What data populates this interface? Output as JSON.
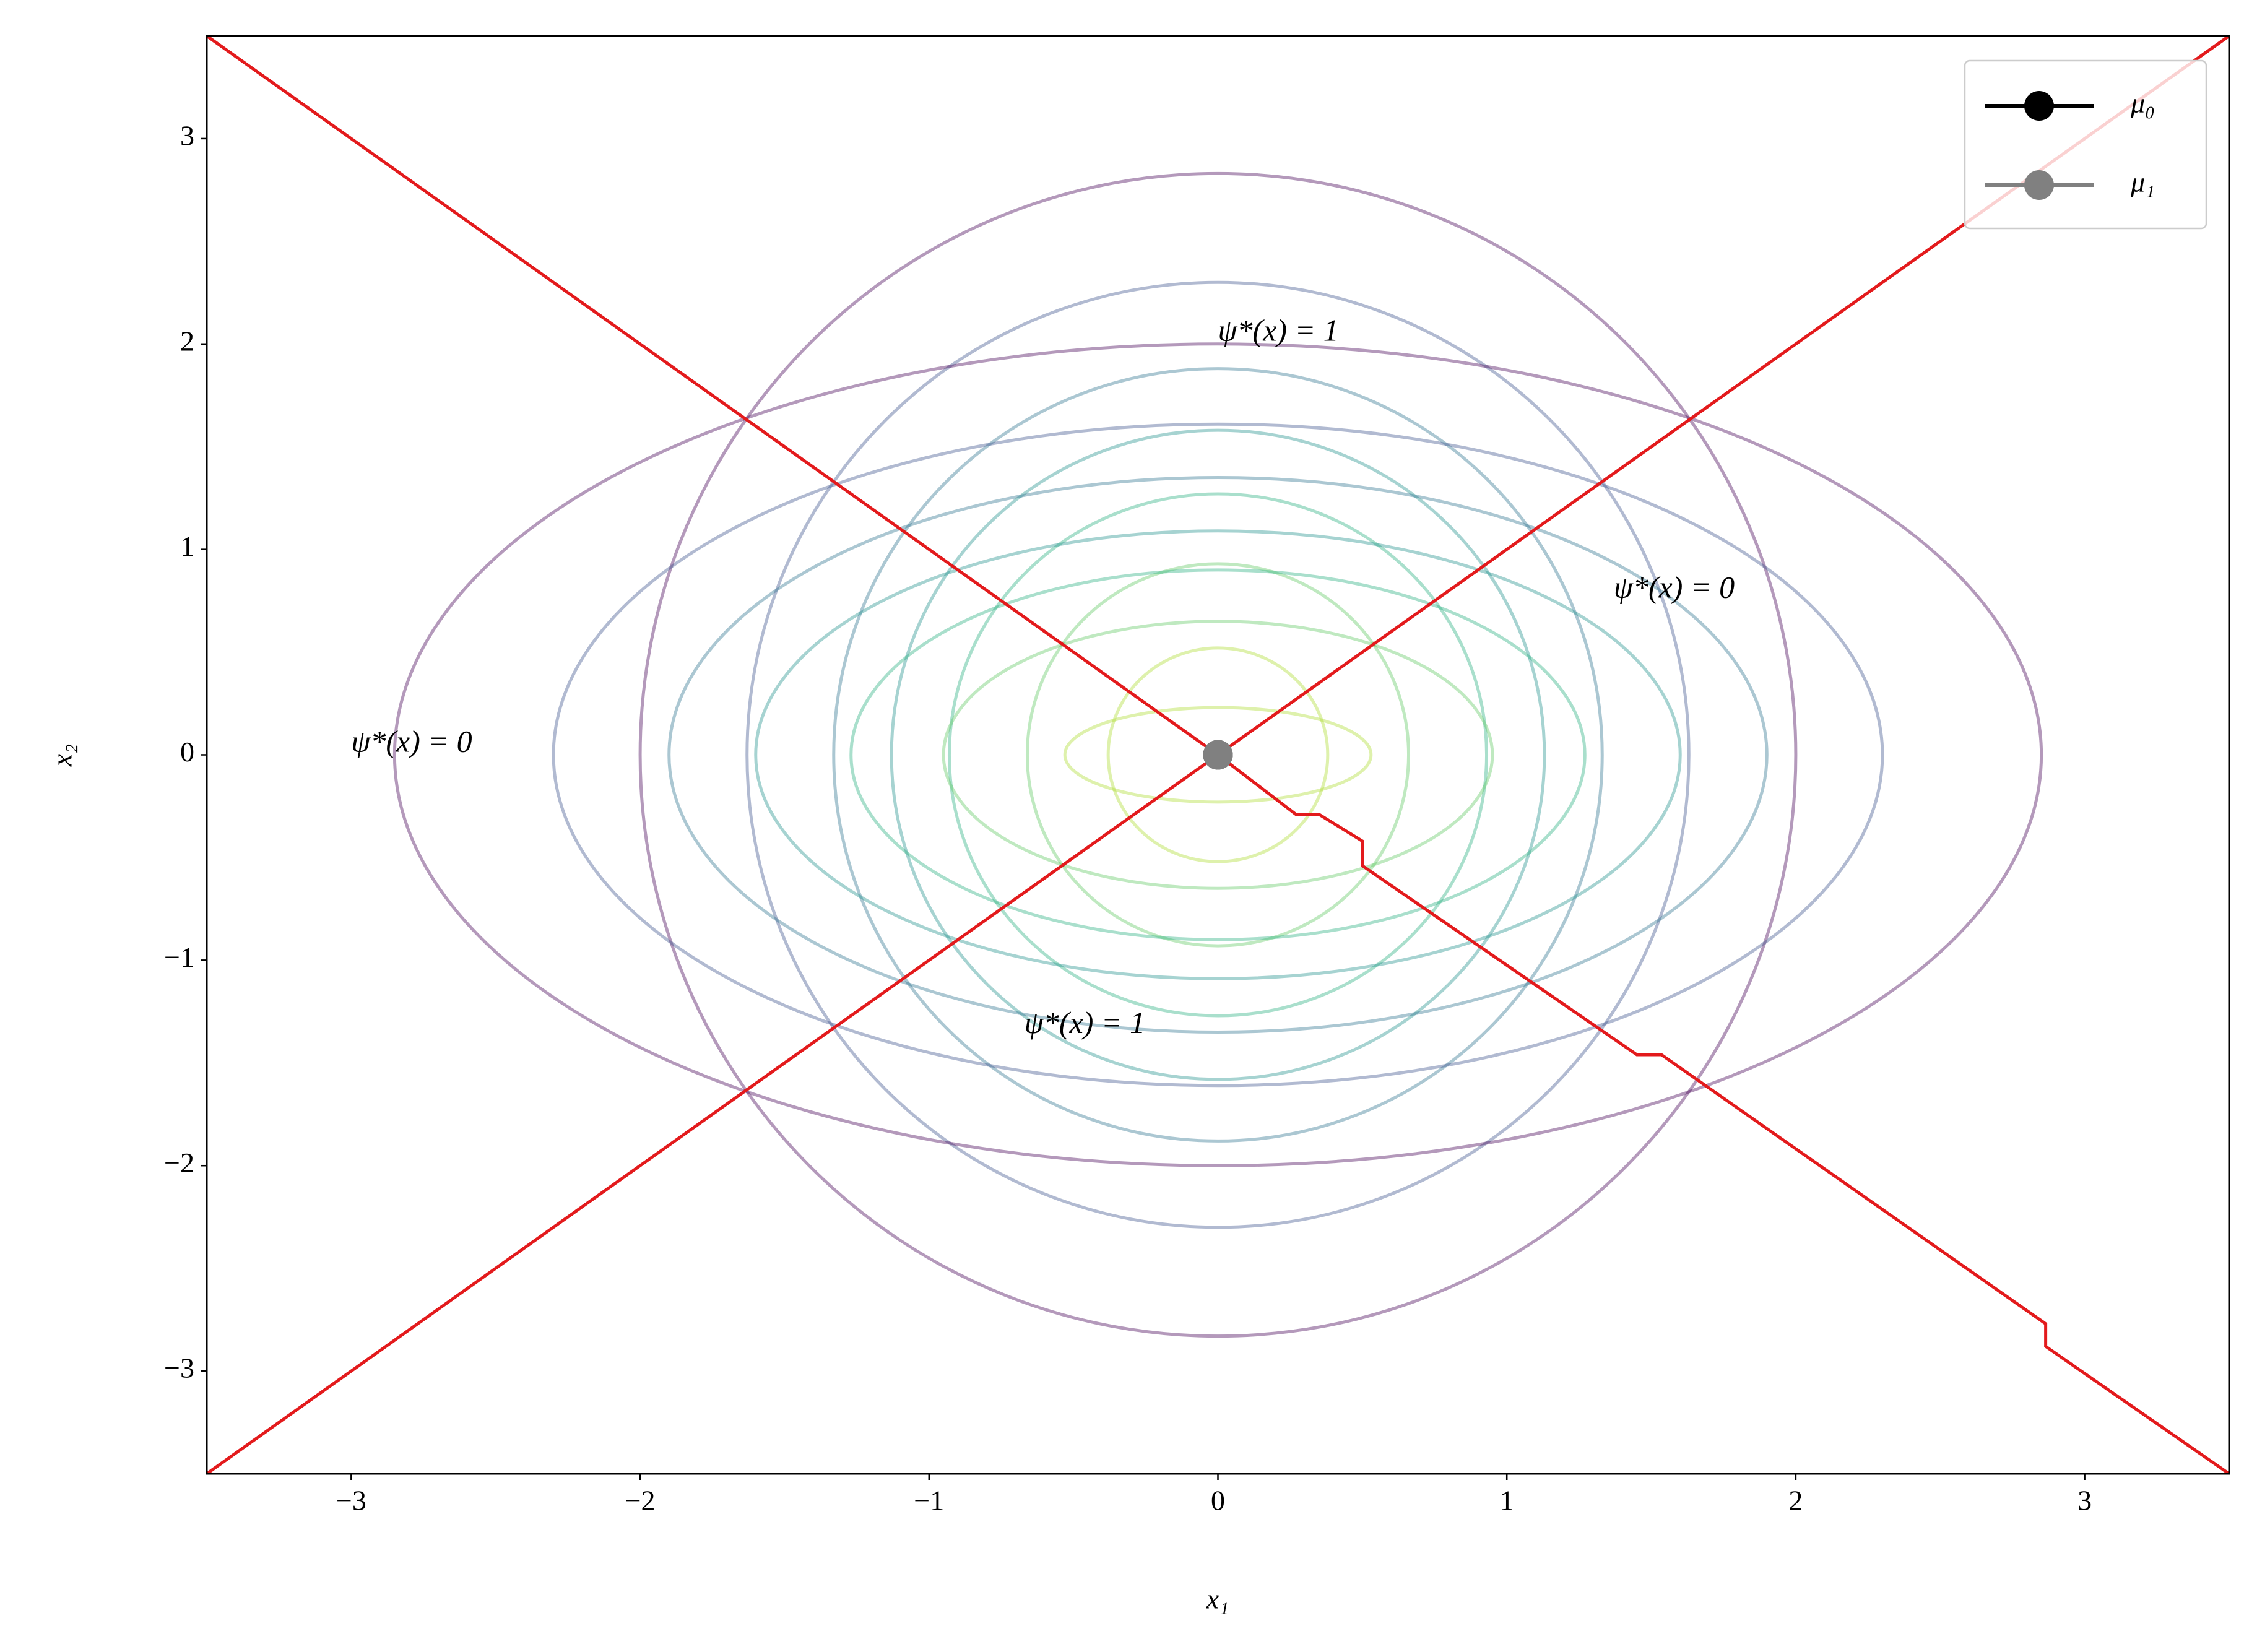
{
  "chart_data": {
    "type": "contour",
    "xlabel": "x₁",
    "ylabel": "x₂",
    "xlim": [
      -3.5,
      3.5
    ],
    "ylim": [
      -3.5,
      3.5
    ],
    "xticks": [
      {
        "value": -3,
        "label": "−3"
      },
      {
        "value": -2,
        "label": "−2"
      },
      {
        "value": -1,
        "label": "−1"
      },
      0,
      1,
      2,
      3
    ],
    "yticks": [
      {
        "value": -3,
        "label": "−3"
      },
      {
        "value": -2,
        "label": "−2"
      },
      {
        "value": -1,
        "label": "−1"
      },
      0,
      1,
      2,
      3
    ],
    "legend": "upper right",
    "ellipses": [
      {
        "cx": 0,
        "cy": 0,
        "rx": 2.0,
        "ry": 2.83,
        "color": "#440154"
      },
      {
        "cx": 0,
        "cy": 0,
        "rx": 1.63,
        "ry": 2.3,
        "color": "#3b528b"
      },
      {
        "cx": 0,
        "cy": 0,
        "rx": 1.33,
        "ry": 1.88,
        "color": "#2c728e"
      },
      {
        "cx": 0,
        "cy": 0,
        "rx": 1.13,
        "ry": 1.58,
        "color": "#21918c"
      },
      {
        "cx": 0,
        "cy": 0,
        "rx": 0.93,
        "ry": 1.27,
        "color": "#28ae80"
      },
      {
        "cx": 0,
        "cy": 0,
        "rx": 0.66,
        "ry": 0.93,
        "color": "#5ec962"
      },
      {
        "cx": 0,
        "cy": 0,
        "rx": 0.38,
        "ry": 0.52,
        "color": "#addc30"
      },
      {
        "cx": 0,
        "cy": 0,
        "rx": 2.85,
        "ry": 2.0,
        "color": "#440154"
      },
      {
        "cx": 0,
        "cy": 0,
        "rx": 2.3,
        "ry": 1.61,
        "color": "#3b528b"
      },
      {
        "cx": 0,
        "cy": 0,
        "rx": 1.9,
        "ry": 1.35,
        "color": "#2c728e"
      },
      {
        "cx": 0,
        "cy": 0,
        "rx": 1.6,
        "ry": 1.09,
        "color": "#21918c"
      },
      {
        "cx": 0,
        "cy": 0,
        "rx": 1.27,
        "ry": 0.9,
        "color": "#28ae80"
      },
      {
        "cx": 0,
        "cy": 0,
        "rx": 0.95,
        "ry": 0.65,
        "color": "#5ec962"
      },
      {
        "cx": 0,
        "cy": 0,
        "rx": 0.53,
        "ry": 0.23,
        "color": "#addc30"
      }
    ],
    "boundaries": [
      {
        "color": "#e31a1c",
        "x": [
          -3.5,
          3.5
        ],
        "y": [
          -3.5,
          3.5
        ]
      },
      {
        "color": "#e31a1c",
        "x": [
          -3.5,
          0,
          0.27,
          0.35,
          0.5,
          0.5,
          1.45,
          1.535,
          2.865,
          2.865,
          3.5
        ],
        "y": [
          3.5,
          0,
          -0.29,
          -0.29,
          -0.42,
          -0.54,
          -1.46,
          -1.46,
          -2.77,
          -2.88,
          -3.5
        ]
      }
    ],
    "series": [
      {
        "name": "μ₀",
        "color": "#000000",
        "x": [
          0
        ],
        "y": [
          0
        ]
      },
      {
        "name": "μ₁",
        "color": "#808080",
        "x": [
          0
        ],
        "y": [
          0
        ]
      }
    ],
    "annotations": [
      {
        "text": "ψ*(x) = 1",
        "x": 0,
        "y": 2.05
      },
      {
        "text": "ψ*(x) = 0",
        "x": 1.37,
        "y": 0.8
      },
      {
        "text": "ψ*(x) = 0",
        "x": -3.0,
        "y": 0.05
      },
      {
        "text": "ψ*(x) = 1",
        "x": -0.67,
        "y": -1.32
      }
    ]
  }
}
